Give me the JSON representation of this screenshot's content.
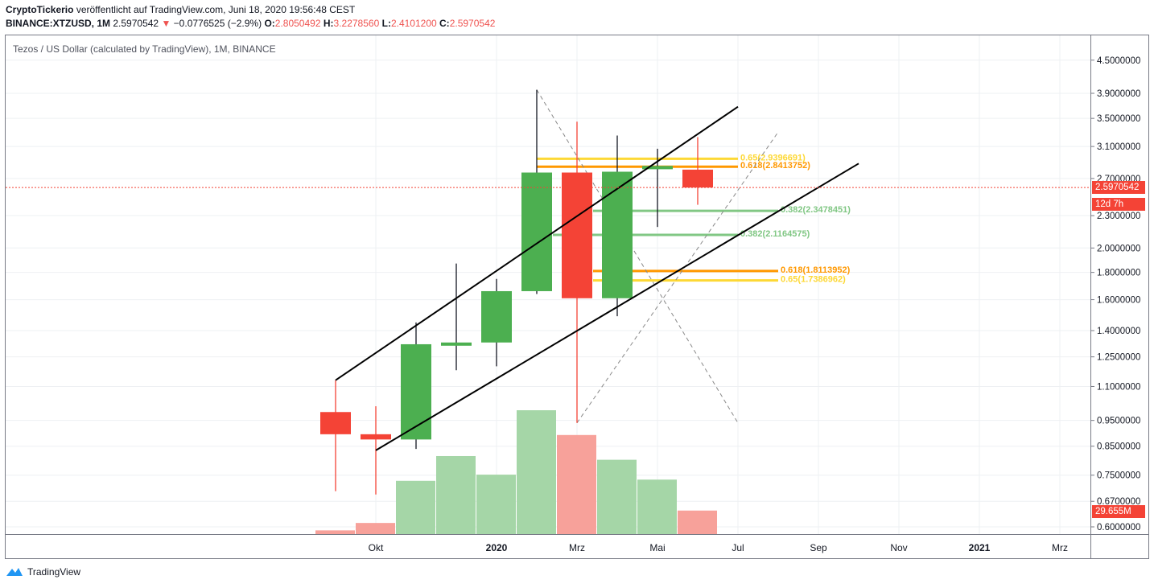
{
  "header": {
    "author": "CryptoTickerio",
    "published_text": "veröffentlicht auf TradingView.com, Juni 18, 2020 19:56:48 CEST",
    "symbol": "BINANCE:XTZUSD, 1M",
    "last": "2.5970542",
    "change": "−0.0776525 (−2.9%)",
    "o_label": "O:",
    "o": "2.8050492",
    "h_label": "H:",
    "h": "3.2278560",
    "l_label": "L:",
    "l": "2.4101200",
    "c_label": "C:",
    "c": "2.5970542"
  },
  "chart_title": "Tezos / US Dollar (calculated by TradingView), 1M, BINANCE",
  "price_tag": "2.5970542",
  "countdown_tag": "12d 7h",
  "volume_tag": "29.655M",
  "footer": {
    "brand": "TradingView"
  },
  "colors": {
    "up": "#4caf50",
    "down": "#f44336",
    "vol_up": "#a5d6a7",
    "vol_down": "#f7a19a",
    "fib_yellow": "#fdd835",
    "fib_orange": "#ff9800",
    "fib_green": "#81c784"
  },
  "chart_data": {
    "type": "candlestick",
    "y_scale": "log",
    "ylim": [
      0.58,
      4.9
    ],
    "y_ticks": [
      "4.5000000",
      "3.9000000",
      "3.5000000",
      "3.1000000",
      "2.7000000",
      "2.3000000",
      "2.0000000",
      "1.8000000",
      "1.6000000",
      "1.4000000",
      "1.2500000",
      "1.1000000",
      "0.9500000",
      "0.8500000",
      "0.7500000",
      "0.6700000",
      "0.6000000"
    ],
    "x_ticks": [
      "Okt",
      "2020",
      "Mrz",
      "Mai",
      "Jul",
      "Sep",
      "Nov",
      "2021",
      "Mrz"
    ],
    "candles": [
      {
        "month": "2019-09",
        "o": 0.985,
        "h": 1.13,
        "l": 0.7,
        "c": 0.895
      },
      {
        "month": "2019-10",
        "o": 0.895,
        "h": 1.01,
        "l": 0.69,
        "c": 0.875
      },
      {
        "month": "2019-11",
        "o": 0.875,
        "h": 1.45,
        "l": 0.84,
        "c": 1.32
      },
      {
        "month": "2019-12",
        "o": 1.32,
        "h": 1.87,
        "l": 1.18,
        "c": 1.33
      },
      {
        "month": "2020-01",
        "o": 1.33,
        "h": 1.75,
        "l": 1.2,
        "c": 1.66
      },
      {
        "month": "2020-02",
        "o": 1.66,
        "h": 3.96,
        "l": 1.64,
        "c": 2.77
      },
      {
        "month": "2020-03",
        "o": 2.77,
        "h": 3.45,
        "l": 0.94,
        "c": 1.61
      },
      {
        "month": "2020-04",
        "o": 1.61,
        "h": 3.25,
        "l": 1.49,
        "c": 2.78
      },
      {
        "month": "2020-05",
        "o": 2.81,
        "h": 3.07,
        "l": 2.19,
        "c": 2.85
      },
      {
        "month": "2020-06",
        "o": 2.8050492,
        "h": 3.227856,
        "l": 2.41012,
        "c": 2.5970542
      }
    ],
    "volume_note": "relative volume bars",
    "volume": [
      0.03,
      0.09,
      0.43,
      0.63,
      0.48,
      1.0,
      0.8,
      0.6,
      0.44,
      0.19
    ],
    "fib_labels": [
      {
        "text": "0.65(2.9396691)",
        "value": 2.9396691,
        "color": "#fdd835"
      },
      {
        "text": "0.618(2.8413752)",
        "value": 2.8413752,
        "color": "#ff9800"
      },
      {
        "text": "0.382(2.3478451)",
        "value": 2.3478451,
        "color": "#81c784"
      },
      {
        "text": "0.382(2.1164575)",
        "value": 2.1164575,
        "color": "#81c784"
      },
      {
        "text": "0.618(1.8113952)",
        "value": 1.8113952,
        "color": "#ff9800"
      },
      {
        "text": "0.65(1.7386962)",
        "value": 1.7386962,
        "color": "#fdd835"
      }
    ]
  }
}
